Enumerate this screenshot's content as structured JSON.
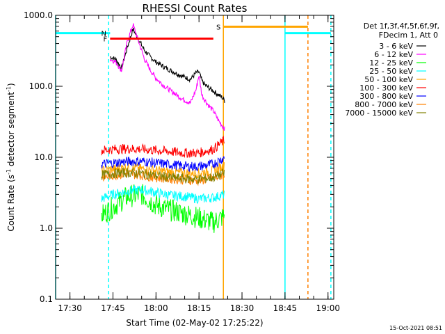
{
  "chart_data": {
    "type": "line",
    "title": "RHESSI Count Rates",
    "xlabel": "Start Time (02-May-02 17:25:22)",
    "ylabel_main": "Count Rate (s",
    "ylabel_sup1": "-1",
    "ylabel_mid": " detector segment",
    "ylabel_sup2": "-1",
    "ylabel_end": ")",
    "y_scale": "log",
    "ylim": [
      0.1,
      1000
    ],
    "xlim": [
      "17:25",
      "19:02"
    ],
    "x_tick_labels": [
      "17:30",
      "17:45",
      "18:00",
      "18:15",
      "18:30",
      "18:45",
      "19:00"
    ],
    "y_tick_labels": [
      "0.1",
      "1.0",
      "10.0",
      "100.0",
      "1000.0"
    ],
    "legend_header": [
      "Det 1f,3f,4f,5f,6f,9f,",
      "FDecim 1, Att 0"
    ],
    "legend_position": "top-right, outside plot",
    "series": [
      {
        "name": "3 - 6 keV",
        "color": "#000000",
        "x": [
          "17:44",
          "17:46",
          "17:48",
          "17:50",
          "17:52",
          "17:54",
          "17:56",
          "17:58",
          "18:00",
          "18:03",
          "18:06",
          "18:09",
          "18:12",
          "18:14",
          "18:15",
          "18:16",
          "18:17",
          "18:19",
          "18:21",
          "18:23",
          "18:24"
        ],
        "values": [
          260,
          240,
          180,
          350,
          640,
          450,
          320,
          260,
          220,
          185,
          160,
          140,
          125,
          155,
          160,
          120,
          105,
          92,
          80,
          70,
          62
        ]
      },
      {
        "name": "6 - 12 keV",
        "color": "#ff00ff",
        "x": [
          "17:44",
          "17:46",
          "17:48",
          "17:50",
          "17:52",
          "17:54",
          "17:56",
          "17:58",
          "18:00",
          "18:03",
          "18:06",
          "18:09",
          "18:12",
          "18:14",
          "18:15",
          "18:16",
          "18:18",
          "18:20",
          "18:22",
          "18:24"
        ],
        "values": [
          240,
          220,
          165,
          430,
          740,
          420,
          240,
          170,
          130,
          100,
          82,
          67,
          58,
          90,
          145,
          75,
          56,
          45,
          32,
          25
        ]
      },
      {
        "name": "12 - 25 keV",
        "color": "#00ff00",
        "x": [
          "17:41",
          "17:45",
          "17:50",
          "17:55",
          "18:00",
          "18:05",
          "18:10",
          "18:15",
          "18:20",
          "18:24"
        ],
        "values": [
          1.5,
          2.0,
          2.8,
          3.0,
          2.1,
          1.8,
          1.6,
          1.4,
          1.2,
          1.5
        ]
      },
      {
        "name": "25 - 50 keV",
        "color": "#00ffff",
        "x": [
          "17:41",
          "17:45",
          "17:50",
          "17:55",
          "18:00",
          "18:05",
          "18:10",
          "18:15",
          "18:20",
          "18:24"
        ],
        "values": [
          2.6,
          3.0,
          3.3,
          3.5,
          3.2,
          2.9,
          2.8,
          2.6,
          2.7,
          3.0
        ]
      },
      {
        "name": "50 - 100 keV",
        "color": "#ffa500",
        "x": [
          "17:41",
          "17:45",
          "17:50",
          "17:55",
          "18:00",
          "18:05",
          "18:10",
          "18:15",
          "18:20",
          "18:24"
        ],
        "values": [
          6.5,
          6.8,
          7.2,
          6.9,
          6.5,
          6.2,
          6.0,
          6.0,
          6.5,
          7.5
        ]
      },
      {
        "name": "100 - 300 keV",
        "color": "#ff0000",
        "x": [
          "17:41",
          "17:45",
          "17:50",
          "17:55",
          "18:00",
          "18:05",
          "18:10",
          "18:15",
          "18:20",
          "18:24"
        ],
        "values": [
          12.5,
          13.0,
          13.2,
          13.0,
          12.5,
          12.0,
          11.5,
          11.5,
          13.0,
          17.5
        ]
      },
      {
        "name": "300 - 800 keV",
        "color": "#0000ff",
        "x": [
          "17:41",
          "17:45",
          "17:50",
          "17:55",
          "18:00",
          "18:05",
          "18:10",
          "18:15",
          "18:20",
          "18:24"
        ],
        "values": [
          8.0,
          8.3,
          8.7,
          8.8,
          8.3,
          7.9,
          7.5,
          7.4,
          8.0,
          10.0
        ]
      },
      {
        "name": "800 - 7000 keV",
        "color": "#ff8000",
        "x": [
          "17:41",
          "17:45",
          "17:50",
          "17:55",
          "18:00",
          "18:05",
          "18:10",
          "18:15",
          "18:20",
          "18:24"
        ],
        "values": [
          5.2,
          5.6,
          5.9,
          5.6,
          5.2,
          5.0,
          4.8,
          4.7,
          5.0,
          5.8
        ]
      },
      {
        "name": "7000 - 15000 keV",
        "color": "#808000",
        "x": [
          "17:41",
          "17:45",
          "17:50",
          "17:55",
          "18:00",
          "18:05",
          "18:10",
          "18:15",
          "18:20",
          "18:24"
        ],
        "values": [
          5.6,
          5.9,
          6.1,
          5.9,
          5.5,
          5.2,
          5.0,
          4.9,
          5.2,
          6.0
        ]
      }
    ],
    "vertical_markers": [
      {
        "time": "17:25",
        "color": "#00ffff",
        "style": "solid"
      },
      {
        "time": "17:43.5",
        "color": "#00ffff",
        "style": "dashed"
      },
      {
        "time": "18:23.5",
        "color": "#ffa500",
        "style": "solid"
      },
      {
        "time": "18:45",
        "color": "#00ffff",
        "style": "solid"
      },
      {
        "time": "18:53",
        "color": "#ff8000",
        "style": "dashed"
      },
      {
        "time": "19:01",
        "color": "#00ffff",
        "style": "dashed"
      }
    ],
    "horizontal_bars": [
      {
        "label": "",
        "color": "#00ffff",
        "from": "17:25",
        "to": "17:43.5",
        "level": 560
      },
      {
        "label": "N",
        "color": "#00ffff",
        "from": "17:43.5",
        "to": "17:44",
        "level": 560
      },
      {
        "label": "F",
        "color": "#ff0000",
        "from": "17:44",
        "to": "18:20",
        "level": 470
      },
      {
        "label": "S",
        "color": "#ffa500",
        "from": "18:23.5",
        "to": "18:53",
        "level": 690
      },
      {
        "label": "",
        "color": "#00ffff",
        "from": "18:45",
        "to": "19:01",
        "level": 560
      }
    ],
    "grid": false
  },
  "footer_timestamp": "15-Oct-2021 08:51"
}
